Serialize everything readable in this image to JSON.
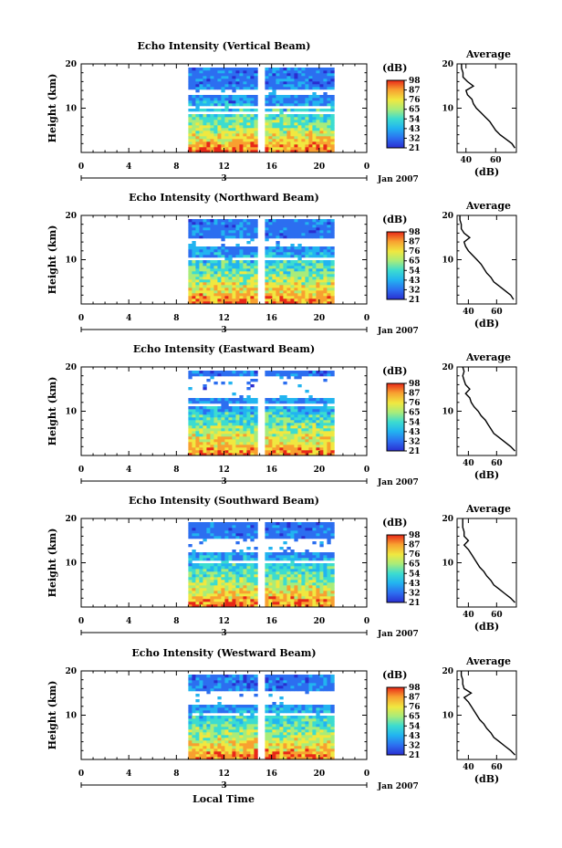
{
  "chart_data": {
    "type": "heatmap",
    "xlabel": "Local Time",
    "x_ticks": [
      "0",
      "4",
      "8",
      "12",
      "16",
      "20",
      "0"
    ],
    "xlim": [
      0,
      24
    ],
    "date_label": "3",
    "month_label": "Jan 2007",
    "ylabel": "Height (km)",
    "y_ticks": [
      "10",
      "20"
    ],
    "ylim": [
      0,
      20
    ],
    "colorbar_unit": "(dB)",
    "colorbar_ticks": [
      "21",
      "32",
      "43",
      "54",
      "65",
      "76",
      "87",
      "98"
    ],
    "colorbar_range": [
      21,
      98
    ],
    "data_span_hours": [
      9,
      21
    ],
    "data_gap_hours": [
      15.0,
      15.3
    ],
    "avg_title": "Average",
    "avg_xlabel": "(dB)",
    "avg_y_ticks": [
      "10",
      "20"
    ],
    "colors": {
      "c21": "#2a2ed0",
      "c32": "#2c6ef0",
      "c43": "#22b4f0",
      "c54": "#3cdcd0",
      "c65": "#a8ec7a",
      "c76": "#f0e840",
      "c87": "#f8a030",
      "c98": "#e82818"
    },
    "panels": [
      {
        "title": "Echo Intensity (Vertical Beam)",
        "avg_x_ticks": [
          "40",
          "60"
        ],
        "avg_xlim": [
          34,
          74
        ],
        "avg_profile": [
          [
            1,
            73
          ],
          [
            2,
            71
          ],
          [
            3,
            67
          ],
          [
            4,
            63
          ],
          [
            5,
            60
          ],
          [
            6,
            58
          ],
          [
            7,
            56
          ],
          [
            8,
            53
          ],
          [
            9,
            50
          ],
          [
            10,
            47
          ],
          [
            11,
            45
          ],
          [
            12,
            44
          ],
          [
            13,
            41
          ],
          [
            14,
            40
          ],
          [
            15,
            45
          ],
          [
            16,
            41
          ],
          [
            17,
            38
          ],
          [
            18,
            38
          ],
          [
            19,
            37
          ],
          [
            20,
            37
          ]
        ],
        "gaps": [
          [
            13,
            14.4
          ],
          [
            10.5,
            11
          ],
          [
            9,
            9.6
          ]
        ]
      },
      {
        "title": "Echo Intensity (Northward Beam)",
        "avg_x_ticks": [
          "40",
          "60"
        ],
        "avg_xlim": [
          32,
          74
        ],
        "avg_profile": [
          [
            1,
            72
          ],
          [
            2,
            70
          ],
          [
            3,
            66
          ],
          [
            4,
            62
          ],
          [
            5,
            58
          ],
          [
            6,
            56
          ],
          [
            7,
            53
          ],
          [
            8,
            51
          ],
          [
            9,
            49
          ],
          [
            10,
            46
          ],
          [
            11,
            43
          ],
          [
            12,
            40
          ],
          [
            13,
            38
          ],
          [
            14,
            37
          ],
          [
            15,
            41
          ],
          [
            16,
            37
          ],
          [
            17,
            35
          ],
          [
            18,
            35
          ],
          [
            19,
            34
          ],
          [
            20,
            34
          ]
        ],
        "gaps": [
          [
            13.3,
            15.2
          ],
          [
            11.8,
            12.3
          ],
          [
            10.2,
            10.6
          ]
        ]
      },
      {
        "title": "Echo Intensity (Eastward Beam)",
        "avg_x_ticks": [
          "40",
          "60"
        ],
        "avg_xlim": [
          32,
          74
        ],
        "avg_profile": [
          [
            1,
            73
          ],
          [
            2,
            70
          ],
          [
            3,
            66
          ],
          [
            4,
            62
          ],
          [
            5,
            58
          ],
          [
            6,
            56
          ],
          [
            7,
            54
          ],
          [
            8,
            52
          ],
          [
            9,
            49
          ],
          [
            10,
            47
          ],
          [
            11,
            44
          ],
          [
            12,
            42
          ],
          [
            13,
            41
          ],
          [
            14,
            38
          ],
          [
            15,
            41
          ],
          [
            16,
            38
          ],
          [
            17,
            37
          ],
          [
            18,
            36
          ],
          [
            19,
            37
          ],
          [
            20,
            36
          ]
        ],
        "gaps": [
          [
            13.3,
            18
          ],
          [
            11.5,
            12.2
          ]
        ]
      },
      {
        "title": "Echo Intensity (Southward Beam)",
        "avg_x_ticks": [
          "40",
          "60"
        ],
        "avg_xlim": [
          32,
          74
        ],
        "avg_profile": [
          [
            1,
            73
          ],
          [
            2,
            70
          ],
          [
            3,
            66
          ],
          [
            4,
            62
          ],
          [
            5,
            58
          ],
          [
            6,
            56
          ],
          [
            7,
            53
          ],
          [
            8,
            51
          ],
          [
            9,
            48
          ],
          [
            10,
            46
          ],
          [
            11,
            44
          ],
          [
            12,
            42
          ],
          [
            13,
            40
          ],
          [
            14,
            37
          ],
          [
            15,
            40
          ],
          [
            16,
            37
          ],
          [
            17,
            37
          ],
          [
            18,
            36
          ],
          [
            19,
            36
          ],
          [
            20,
            36
          ]
        ],
        "gaps": [
          [
            12.7,
            15.5
          ],
          [
            10.5,
            11
          ]
        ]
      },
      {
        "title": "Echo Intensity (Westward Beam)",
        "avg_x_ticks": [
          "40",
          "60"
        ],
        "avg_xlim": [
          32,
          74
        ],
        "avg_profile": [
          [
            1,
            73
          ],
          [
            2,
            70
          ],
          [
            3,
            66
          ],
          [
            4,
            62
          ],
          [
            5,
            58
          ],
          [
            6,
            56
          ],
          [
            7,
            53
          ],
          [
            8,
            51
          ],
          [
            9,
            48
          ],
          [
            10,
            46
          ],
          [
            11,
            44
          ],
          [
            12,
            42
          ],
          [
            13,
            40
          ],
          [
            14,
            37
          ],
          [
            15,
            42
          ],
          [
            16,
            37
          ],
          [
            17,
            36
          ],
          [
            18,
            36
          ],
          [
            19,
            35
          ],
          [
            20,
            35
          ]
        ],
        "gaps": [
          [
            12.7,
            15.8
          ],
          [
            10.5,
            11
          ]
        ]
      }
    ]
  }
}
